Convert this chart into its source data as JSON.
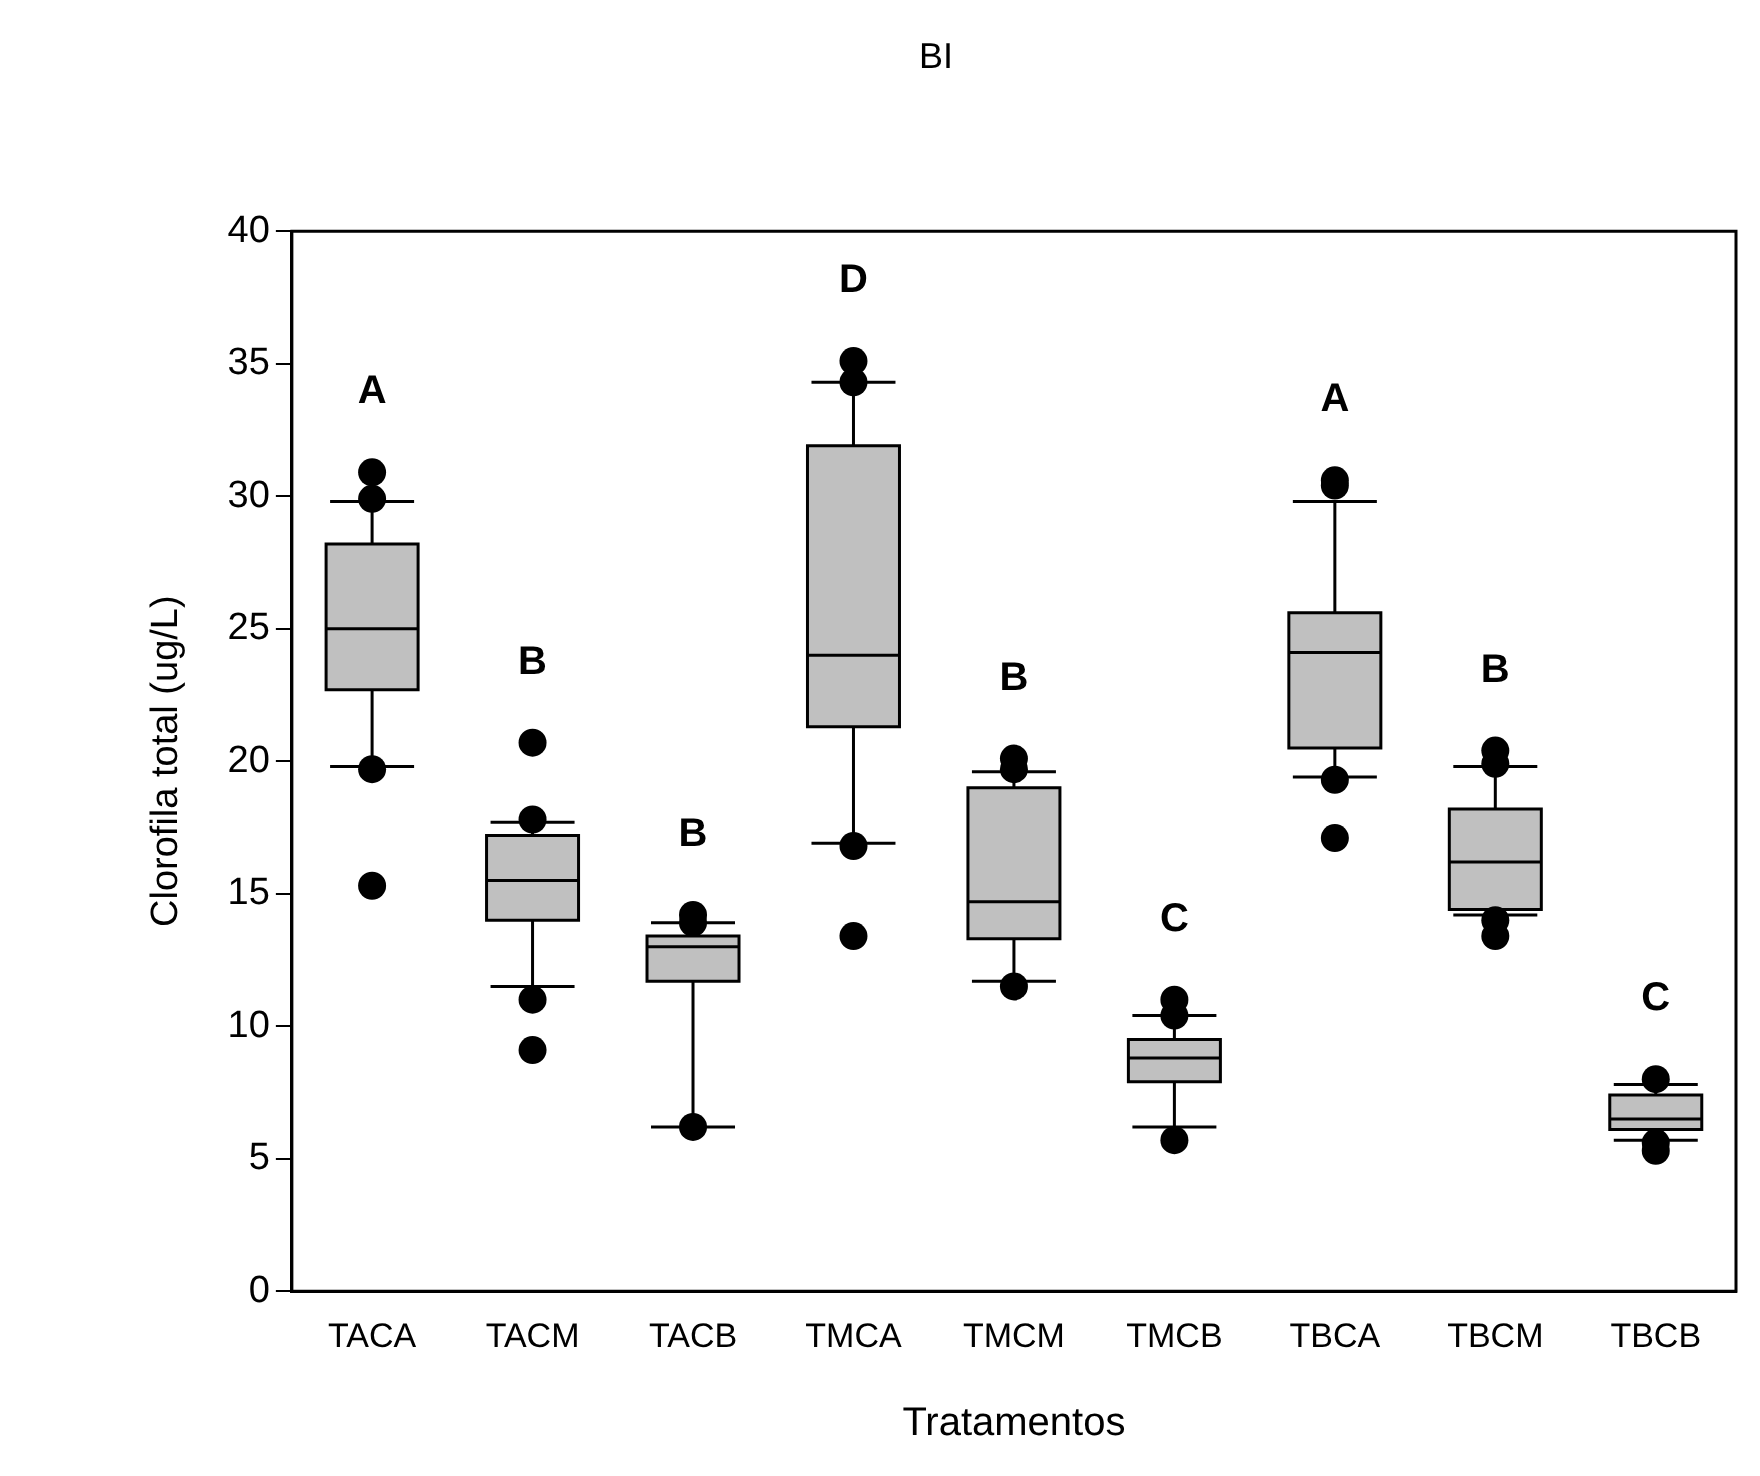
{
  "chart_data": {
    "type": "box",
    "title": "BI",
    "xlabel": "Tratamentos",
    "ylabel": "Clorofila total (ug/L)",
    "categories": [
      "TACA",
      "TACM",
      "TACB",
      "TMCA",
      "TMCM",
      "TMCB",
      "TBCA",
      "TBCM",
      "TBCB"
    ],
    "boxes": [
      {
        "low": 19.8,
        "q1": 22.7,
        "median": 25.0,
        "q3": 28.2,
        "high": 29.8,
        "outliers": [
          30.9,
          29.9,
          19.7,
          15.3
        ]
      },
      {
        "low": 11.5,
        "q1": 14.0,
        "median": 15.5,
        "q3": 17.2,
        "high": 17.7,
        "outliers": [
          20.7,
          17.8,
          11.0,
          9.1
        ]
      },
      {
        "low": 6.2,
        "q1": 11.7,
        "median": 13.0,
        "q3": 13.4,
        "high": 13.9,
        "outliers": [
          14.2,
          13.9,
          6.2
        ]
      },
      {
        "low": 16.9,
        "q1": 21.3,
        "median": 24.0,
        "q3": 31.9,
        "high": 34.3,
        "outliers": [
          35.1,
          34.3,
          16.8,
          13.4
        ]
      },
      {
        "low": 11.7,
        "q1": 13.3,
        "median": 14.7,
        "q3": 19.0,
        "high": 19.6,
        "outliers": [
          20.1,
          19.7,
          11.5
        ]
      },
      {
        "low": 6.2,
        "q1": 7.9,
        "median": 8.8,
        "q3": 9.5,
        "high": 10.4,
        "outliers": [
          11.0,
          10.4,
          5.7
        ]
      },
      {
        "low": 19.4,
        "q1": 20.5,
        "median": 24.1,
        "q3": 25.6,
        "high": 29.8,
        "outliers": [
          30.6,
          30.4,
          19.3,
          17.1
        ]
      },
      {
        "low": 14.2,
        "q1": 14.4,
        "median": 16.2,
        "q3": 18.2,
        "high": 19.8,
        "outliers": [
          20.4,
          19.9,
          14.0,
          13.4
        ]
      },
      {
        "low": 5.7,
        "q1": 6.1,
        "median": 6.5,
        "q3": 7.4,
        "high": 7.8,
        "outliers": [
          8.0,
          5.6,
          5.3
        ]
      }
    ],
    "color": "#c0c0c0",
    "ylim": [
      0,
      40
    ],
    "yticks": [
      0,
      5,
      10,
      15,
      20,
      25,
      30,
      35,
      40
    ],
    "grid": false,
    "legend": false,
    "annotations": [
      "A",
      "B",
      "B",
      "D",
      "B",
      "C",
      "A",
      "B",
      "C"
    ]
  }
}
